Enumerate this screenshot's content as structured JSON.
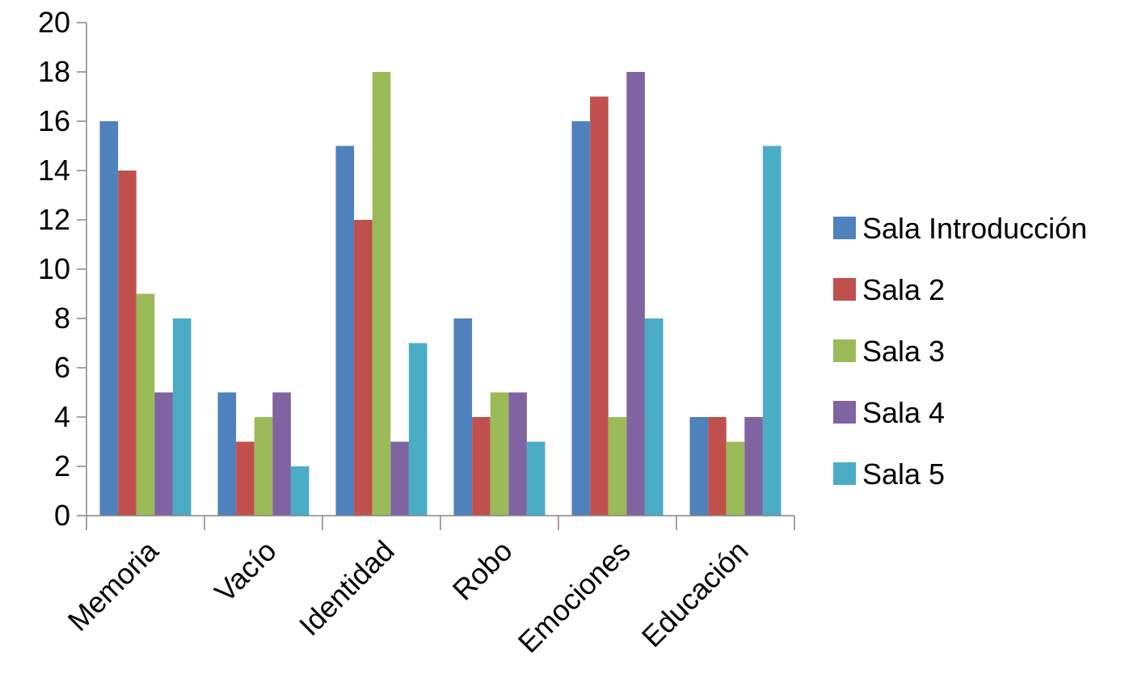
{
  "chart_data": {
    "type": "bar",
    "title": "",
    "xlabel": "",
    "ylabel": "",
    "ylim": [
      0,
      20
    ],
    "y_ticks": [
      "0",
      "2",
      "4",
      "6",
      "8",
      "10",
      "12",
      "14",
      "16",
      "18",
      "20"
    ],
    "grid": false,
    "legend_position": "right",
    "categories": [
      "Memoria",
      "Vacío",
      "Identidad",
      "Robo",
      "Emociones",
      "Educación"
    ],
    "series": [
      {
        "name": "Sala Introducción",
        "color": "#4F81BD",
        "values": [
          16,
          5,
          15,
          8,
          16,
          4
        ]
      },
      {
        "name": "Sala 2",
        "color": "#C0504D",
        "values": [
          14,
          3,
          12,
          4,
          17,
          4
        ]
      },
      {
        "name": "Sala 3",
        "color": "#9BBB59",
        "values": [
          9,
          4,
          18,
          5,
          4,
          3
        ]
      },
      {
        "name": "Sala 4",
        "color": "#8064A2",
        "values": [
          5,
          5,
          3,
          5,
          18,
          4
        ]
      },
      {
        "name": "Sala 5",
        "color": "#4BACC6",
        "values": [
          8,
          2,
          7,
          3,
          8,
          15
        ]
      }
    ]
  }
}
